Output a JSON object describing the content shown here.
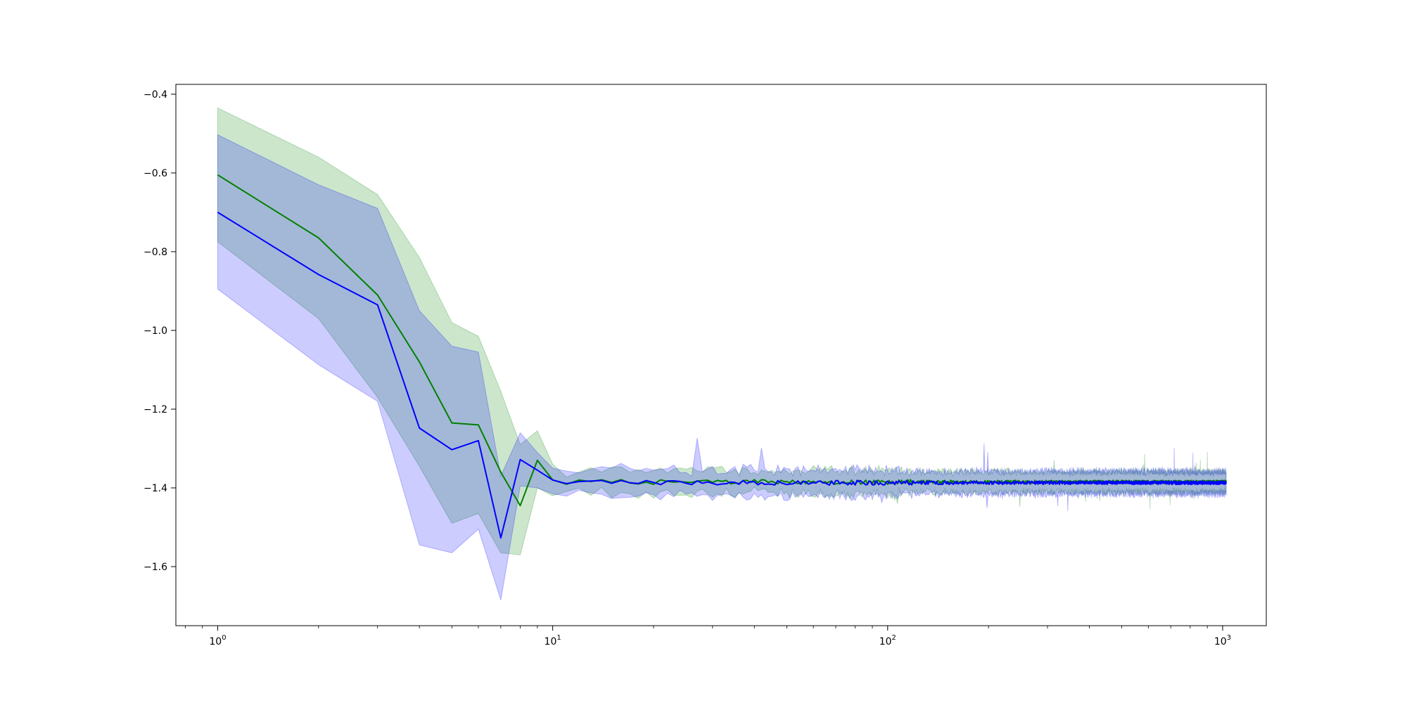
{
  "chart_data": {
    "type": "line",
    "title": "",
    "xlabel": "",
    "ylabel": "",
    "xscale": "log",
    "xlim": [
      0.75,
      1350
    ],
    "ylim": [
      -1.75,
      -0.375
    ],
    "grid": false,
    "legend": "none",
    "x_ticks": [
      {
        "base": "10",
        "exp": "0",
        "value": 1
      },
      {
        "base": "10",
        "exp": "1",
        "value": 10
      },
      {
        "base": "10",
        "exp": "2",
        "value": 100
      },
      {
        "base": "10",
        "exp": "3",
        "value": 1000
      }
    ],
    "y_ticks": [
      {
        "label": "−0.4",
        "value": -0.4
      },
      {
        "label": "−0.6",
        "value": -0.6
      },
      {
        "label": "−0.8",
        "value": -0.8
      },
      {
        "label": "−1.0",
        "value": -1.0
      },
      {
        "label": "−1.2",
        "value": -1.2
      },
      {
        "label": "−1.4",
        "value": -1.4
      },
      {
        "label": "−1.6",
        "value": -1.6
      }
    ],
    "series": [
      {
        "color": "#008000",
        "band_color": "#008000",
        "x": [
          1,
          2,
          3,
          4,
          5,
          6,
          7,
          8,
          9,
          10
        ],
        "mean": [
          -0.605,
          -0.765,
          -0.91,
          -1.08,
          -1.235,
          -1.24,
          -1.36,
          -1.445,
          -1.33,
          -1.38
        ],
        "upper": [
          -0.435,
          -0.56,
          -0.655,
          -0.815,
          -0.98,
          -1.015,
          -1.155,
          -1.29,
          -1.255,
          -1.34
        ],
        "lower": [
          -0.775,
          -0.97,
          -1.17,
          -1.345,
          -1.49,
          -1.465,
          -1.565,
          -1.57,
          -1.4,
          -1.42
        ],
        "tail": {
          "level": -1.385,
          "mean_noise": 0.006,
          "band_half_width": 0.018,
          "band_noise": 0.022,
          "spike_up": 0.08,
          "spike_down": 0.07
        }
      },
      {
        "color": "#0000ff",
        "band_color": "#0000ff",
        "x": [
          1,
          2,
          3,
          4,
          5,
          6,
          7,
          8,
          9,
          10
        ],
        "mean": [
          -0.7,
          -0.858,
          -0.935,
          -1.248,
          -1.303,
          -1.28,
          -1.527,
          -1.328,
          -1.355,
          -1.38
        ],
        "upper": [
          -0.503,
          -0.63,
          -0.69,
          -0.95,
          -1.04,
          -1.055,
          -1.37,
          -1.26,
          -1.31,
          -1.35
        ],
        "lower": [
          -0.895,
          -1.087,
          -1.18,
          -1.545,
          -1.565,
          -1.505,
          -1.685,
          -1.395,
          -1.4,
          -1.415
        ],
        "tail": {
          "level": -1.387,
          "mean_noise": 0.006,
          "band_half_width": 0.02,
          "band_noise": 0.024,
          "spike_up": 0.11,
          "spike_down": 0.07
        }
      }
    ]
  }
}
